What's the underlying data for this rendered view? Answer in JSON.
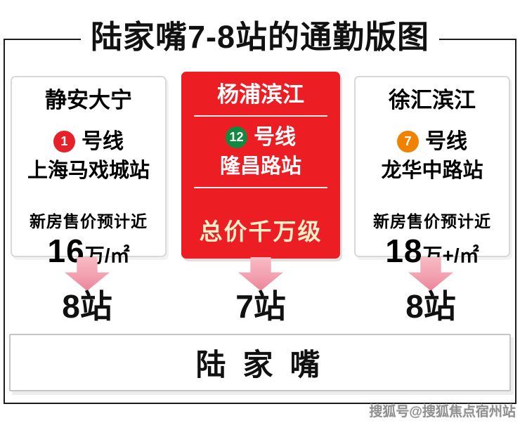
{
  "title": "陆家嘴7-8站的通勤版图",
  "columns": [
    {
      "name": "静安大宁",
      "line_number": "1",
      "line_suffix": "号线",
      "line_color": "#e62129",
      "station": "上海马戏城站",
      "price_label": "新房售价预计近",
      "price_value": "16",
      "price_unit": "万/㎡",
      "stops": "8站"
    },
    {
      "name": "杨浦滨江",
      "line_number": "12",
      "line_suffix": "号线",
      "line_color": "#0f8a3e",
      "station": "隆昌路站",
      "price_note": "总价千万级",
      "stops": "7站"
    },
    {
      "name": "徐汇滨江",
      "line_number": "7",
      "line_suffix": "号线",
      "line_color": "#f08200",
      "station": "龙华中路站",
      "price_label": "新房售价预计近",
      "price_value": "18",
      "price_unit": "万+/㎡",
      "stops": "8站"
    }
  ],
  "destination": "陆 家 嘴",
  "watermark": "搜狐号@搜狐焦点宿州站",
  "colors": {
    "highlight_card_red": "#ec1e24",
    "highlight_note_cream": "#f8efc8",
    "arrow_pink_top": "#f7bac3",
    "arrow_pink_bottom": "#ec8399",
    "frame_black": "#1c1c1c"
  }
}
